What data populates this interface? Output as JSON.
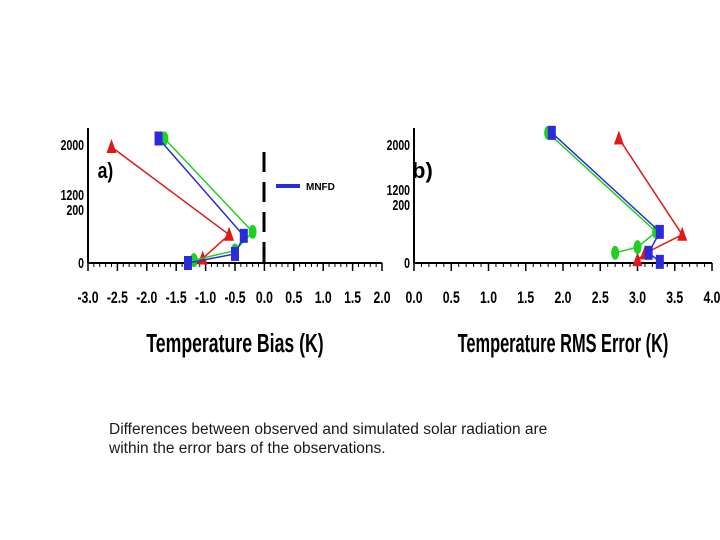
{
  "chart_data": [
    {
      "type": "scatter",
      "panel_label": "a)",
      "xlabel": "Temperature Bias (K)",
      "ylabel": "",
      "xticks": [
        "-3.0",
        "-2.5",
        "-2.0",
        "-1.5",
        "-1.0",
        "-0.5",
        "0.0",
        "0.5",
        "1.0",
        "1.5",
        "2.0"
      ],
      "yticks": [
        "2000",
        "1200",
        "200",
        "0"
      ],
      "xlim": [
        -3.0,
        2.0
      ],
      "legend": [
        {
          "name": "MNFD",
          "color": "#2b2bdb"
        }
      ],
      "series": [
        {
          "color": "#e01818",
          "points": [
            [
              -1.05,
              0.08
            ],
            [
              -0.6,
              0.5
            ],
            [
              -2.6,
              2.05
            ]
          ]
        },
        {
          "color": "#20d020",
          "points": [
            [
              -1.2,
              0.05
            ],
            [
              -0.5,
              0.22
            ],
            [
              -0.2,
              0.55
            ],
            [
              -1.7,
              2.2
            ]
          ]
        },
        {
          "color": "#2b2bdb",
          "points": [
            [
              -1.3,
              0.0
            ],
            [
              -0.5,
              0.16
            ],
            [
              -0.35,
              0.48
            ],
            [
              -1.8,
              2.2
            ]
          ]
        }
      ]
    },
    {
      "type": "scatter",
      "panel_label": "b)",
      "xlabel": "Temperature RMS Error (K)",
      "ylabel": "",
      "xticks": [
        "0.0",
        "0.5",
        "1.0",
        "1.5",
        "2.0",
        "2.5",
        "3.0",
        "3.5",
        "4.0"
      ],
      "yticks": [
        "2000",
        "1200",
        "200",
        "0"
      ],
      "xlim": [
        0.0,
        4.0
      ],
      "series": [
        {
          "color": "#e01818",
          "points": [
            [
              3.0,
              0.05
            ],
            [
              3.1,
              0.17
            ],
            [
              3.6,
              0.5
            ],
            [
              2.75,
              2.2
            ]
          ]
        },
        {
          "color": "#20d020",
          "points": [
            [
              2.7,
              0.18
            ],
            [
              3.0,
              0.28
            ],
            [
              3.25,
              0.55
            ],
            [
              1.8,
              2.3
            ]
          ]
        },
        {
          "color": "#2b2bdb",
          "points": [
            [
              3.3,
              0.02
            ],
            [
              3.15,
              0.18
            ],
            [
              3.3,
              0.55
            ],
            [
              1.85,
              2.3
            ]
          ]
        }
      ]
    }
  ],
  "caption": {
    "line1": "Differences between observed and simulated solar radiation are",
    "line2": "within the error bars of the observations."
  }
}
